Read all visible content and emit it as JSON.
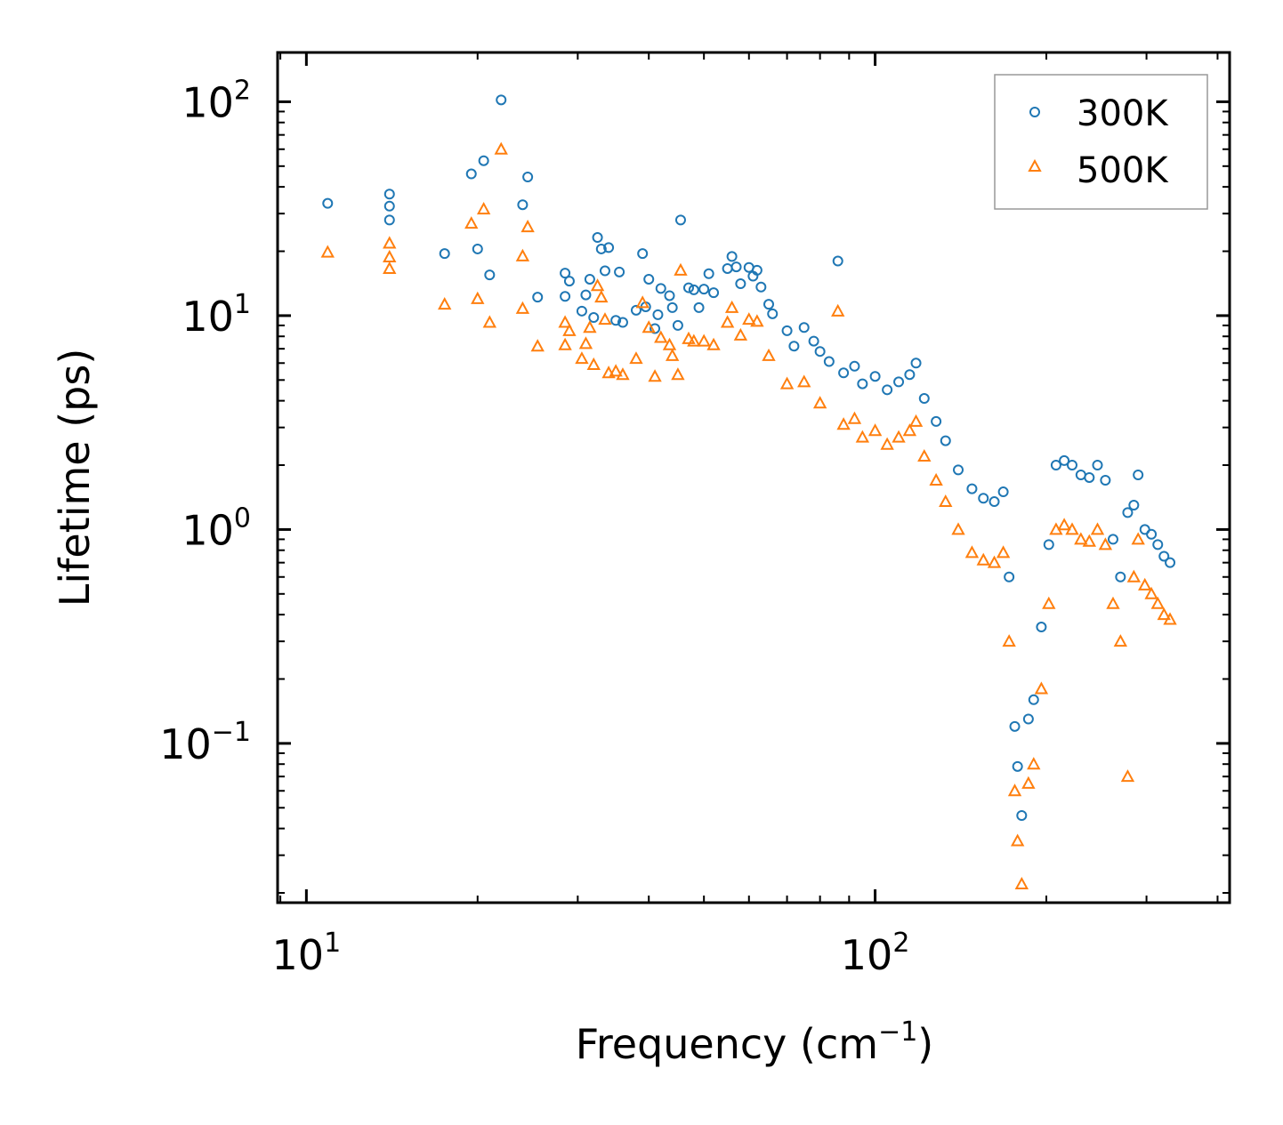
{
  "chart_data": {
    "type": "scatter",
    "xscale": "log",
    "yscale": "log",
    "xlim": [
      8.9,
      420
    ],
    "ylim": [
      0.018,
      170
    ],
    "xlabel": "Frequency (cm",
    "xlabel_exp": "−1",
    "xlabel_suffix": ")",
    "ylabel": "Lifetime (ps)",
    "xticks": [
      {
        "value": 10,
        "base": "10",
        "exp": "1"
      },
      {
        "value": 100,
        "base": "10",
        "exp": "2"
      }
    ],
    "yticks": [
      {
        "value": 0.1,
        "base": "10",
        "exp": "−1"
      },
      {
        "value": 1,
        "base": "10",
        "exp": "0"
      },
      {
        "value": 10,
        "base": "10",
        "exp": "1"
      },
      {
        "value": 100,
        "base": "10",
        "exp": "2"
      }
    ],
    "legend": {
      "position": "top-right"
    },
    "series": [
      {
        "name": "300K",
        "marker": "circle",
        "color": "#1f77b4",
        "points": [
          [
            10.9,
            33.5
          ],
          [
            14.0,
            37.0
          ],
          [
            14.0,
            32.5
          ],
          [
            14.0,
            28.0
          ],
          [
            17.5,
            19.5
          ],
          [
            19.5,
            46.0
          ],
          [
            20.0,
            20.5
          ],
          [
            20.5,
            53.0
          ],
          [
            21.0,
            15.5
          ],
          [
            22.0,
            102.0
          ],
          [
            24.0,
            33.0
          ],
          [
            24.5,
            44.5
          ],
          [
            25.5,
            12.2
          ],
          [
            28.5,
            15.8
          ],
          [
            28.5,
            12.3
          ],
          [
            29.0,
            14.5
          ],
          [
            30.5,
            10.5
          ],
          [
            31.0,
            12.5
          ],
          [
            31.5,
            14.8
          ],
          [
            32.0,
            9.8
          ],
          [
            32.5,
            23.2
          ],
          [
            33.0,
            20.5
          ],
          [
            33.5,
            16.2
          ],
          [
            34.0,
            20.8
          ],
          [
            35.0,
            9.5
          ],
          [
            35.5,
            16.0
          ],
          [
            36.0,
            9.3
          ],
          [
            38.0,
            10.6
          ],
          [
            39.0,
            19.5
          ],
          [
            39.5,
            11.0
          ],
          [
            40.0,
            14.8
          ],
          [
            41.0,
            8.7
          ],
          [
            41.5,
            10.1
          ],
          [
            42.0,
            13.4
          ],
          [
            43.5,
            12.4
          ],
          [
            44.0,
            10.9
          ],
          [
            45.0,
            9.0
          ],
          [
            45.5,
            28.0
          ],
          [
            47.0,
            13.5
          ],
          [
            48.0,
            13.2
          ],
          [
            49.0,
            10.9
          ],
          [
            50.0,
            13.3
          ],
          [
            51.0,
            15.7
          ],
          [
            52.0,
            12.8
          ],
          [
            55.0,
            16.6
          ],
          [
            56.0,
            18.9
          ],
          [
            57.0,
            16.9
          ],
          [
            58.0,
            14.1
          ],
          [
            60.0,
            16.8
          ],
          [
            61.0,
            15.3
          ],
          [
            62.0,
            16.3
          ],
          [
            63.0,
            13.6
          ],
          [
            65.0,
            11.3
          ],
          [
            66.0,
            10.2
          ],
          [
            70.0,
            8.5
          ],
          [
            72.0,
            7.2
          ],
          [
            75.0,
            8.8
          ],
          [
            78.0,
            7.6
          ],
          [
            80.0,
            6.8
          ],
          [
            83.0,
            6.1
          ],
          [
            86.0,
            18.0
          ],
          [
            88.0,
            5.4
          ],
          [
            92.0,
            5.8
          ],
          [
            95.0,
            4.8
          ],
          [
            100.0,
            5.2
          ],
          [
            105.0,
            4.5
          ],
          [
            110.0,
            4.9
          ],
          [
            115.0,
            5.3
          ],
          [
            118.0,
            6.0
          ],
          [
            122.0,
            4.1
          ],
          [
            128.0,
            3.2
          ],
          [
            133.0,
            2.6
          ],
          [
            140.0,
            1.9
          ],
          [
            148.0,
            1.55
          ],
          [
            155.0,
            1.4
          ],
          [
            162.0,
            1.35
          ],
          [
            168.0,
            1.5
          ],
          [
            172.0,
            0.6
          ],
          [
            176.0,
            0.12
          ],
          [
            178.0,
            0.078
          ],
          [
            181.0,
            0.046
          ],
          [
            186.0,
            0.13
          ],
          [
            190.0,
            0.16
          ],
          [
            196.0,
            0.35
          ],
          [
            202.0,
            0.85
          ],
          [
            208.0,
            2.0
          ],
          [
            215.0,
            2.1
          ],
          [
            222.0,
            2.0
          ],
          [
            230.0,
            1.8
          ],
          [
            238.0,
            1.75
          ],
          [
            246.0,
            2.0
          ],
          [
            254.0,
            1.7
          ],
          [
            262.0,
            0.9
          ],
          [
            270.0,
            0.6
          ],
          [
            278.0,
            1.2
          ],
          [
            285.0,
            1.3
          ],
          [
            290.0,
            1.8
          ],
          [
            298.0,
            1.0
          ],
          [
            306.0,
            0.95
          ],
          [
            314.0,
            0.85
          ],
          [
            322.0,
            0.75
          ],
          [
            330.0,
            0.7
          ]
        ]
      },
      {
        "name": "500K",
        "marker": "triangle",
        "color": "#ff7f0e",
        "points": [
          [
            10.9,
            19.8
          ],
          [
            14.0,
            21.8
          ],
          [
            14.0,
            18.8
          ],
          [
            14.0,
            16.6
          ],
          [
            17.5,
            11.3
          ],
          [
            19.5,
            27.0
          ],
          [
            20.0,
            12.0
          ],
          [
            20.5,
            31.5
          ],
          [
            21.0,
            9.3
          ],
          [
            22.0,
            60.0
          ],
          [
            24.0,
            10.8
          ],
          [
            24.5,
            26.0
          ],
          [
            24.0,
            19.0
          ],
          [
            25.5,
            7.2
          ],
          [
            28.5,
            9.3
          ],
          [
            28.5,
            7.3
          ],
          [
            29.0,
            8.5
          ],
          [
            30.5,
            6.3
          ],
          [
            31.0,
            7.4
          ],
          [
            31.5,
            8.8
          ],
          [
            32.0,
            5.9
          ],
          [
            32.5,
            13.8
          ],
          [
            33.0,
            12.2
          ],
          [
            33.5,
            9.6
          ],
          [
            34.0,
            5.4
          ],
          [
            35.0,
            5.5
          ],
          [
            36.0,
            5.3
          ],
          [
            38.0,
            6.3
          ],
          [
            39.0,
            11.5
          ],
          [
            40.0,
            8.8
          ],
          [
            41.0,
            5.2
          ],
          [
            42.0,
            7.9
          ],
          [
            43.5,
            7.3
          ],
          [
            44.0,
            6.5
          ],
          [
            45.0,
            5.3
          ],
          [
            45.5,
            16.3
          ],
          [
            47.0,
            7.8
          ],
          [
            48.0,
            7.6
          ],
          [
            50.0,
            7.6
          ],
          [
            52.0,
            7.3
          ],
          [
            55.0,
            9.3
          ],
          [
            56.0,
            10.9
          ],
          [
            58.0,
            8.1
          ],
          [
            60.0,
            9.6
          ],
          [
            62.0,
            9.4
          ],
          [
            65.0,
            6.5
          ],
          [
            70.0,
            4.8
          ],
          [
            75.0,
            4.9
          ],
          [
            80.0,
            3.9
          ],
          [
            86.0,
            10.5
          ],
          [
            88.0,
            3.1
          ],
          [
            92.0,
            3.3
          ],
          [
            95.0,
            2.7
          ],
          [
            100.0,
            2.9
          ],
          [
            105.0,
            2.5
          ],
          [
            110.0,
            2.7
          ],
          [
            115.0,
            2.9
          ],
          [
            118.0,
            3.2
          ],
          [
            122.0,
            2.2
          ],
          [
            128.0,
            1.7
          ],
          [
            133.0,
            1.35
          ],
          [
            140.0,
            1.0
          ],
          [
            148.0,
            0.78
          ],
          [
            155.0,
            0.72
          ],
          [
            162.0,
            0.7
          ],
          [
            168.0,
            0.78
          ],
          [
            172.0,
            0.3
          ],
          [
            176.0,
            0.06
          ],
          [
            178.0,
            0.035
          ],
          [
            181.0,
            0.022
          ],
          [
            186.0,
            0.065
          ],
          [
            190.0,
            0.08
          ],
          [
            196.0,
            0.18
          ],
          [
            202.0,
            0.45
          ],
          [
            208.0,
            1.0
          ],
          [
            215.0,
            1.05
          ],
          [
            222.0,
            1.0
          ],
          [
            230.0,
            0.9
          ],
          [
            238.0,
            0.88
          ],
          [
            246.0,
            1.0
          ],
          [
            254.0,
            0.85
          ],
          [
            262.0,
            0.45
          ],
          [
            270.0,
            0.3
          ],
          [
            278.0,
            0.07
          ],
          [
            285.0,
            0.6
          ],
          [
            290.0,
            0.9
          ],
          [
            298.0,
            0.55
          ],
          [
            306.0,
            0.5
          ],
          [
            314.0,
            0.45
          ],
          [
            322.0,
            0.4
          ],
          [
            330.0,
            0.38
          ]
        ]
      }
    ]
  }
}
